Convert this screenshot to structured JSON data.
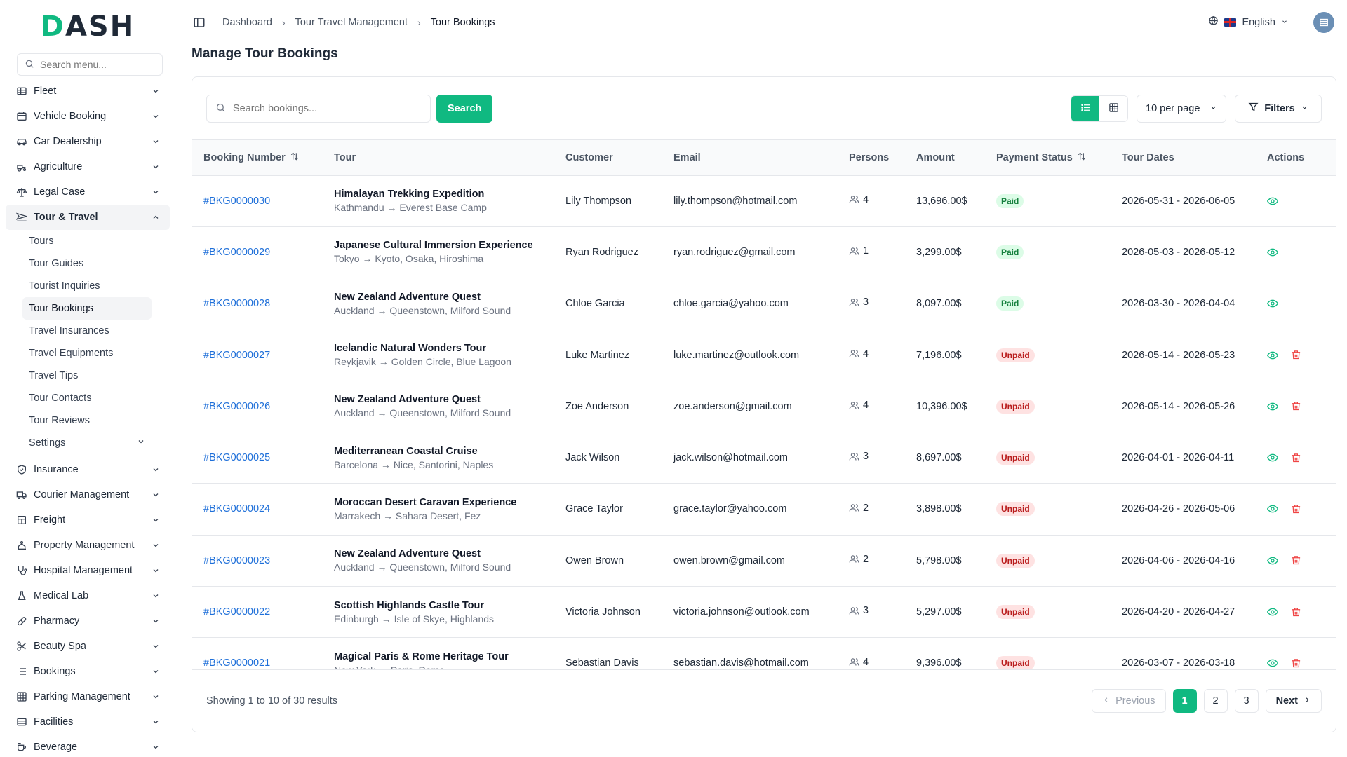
{
  "brand": {
    "logo_prefix": "D",
    "logo_rest": "ASH"
  },
  "sidebar": {
    "search_placeholder": "Search menu...",
    "items_top": [
      {
        "label": "Fleet",
        "icon": "fleet-icon"
      },
      {
        "label": "Vehicle Booking",
        "icon": "vehicle-booking-icon"
      },
      {
        "label": "Car Dealership",
        "icon": "car-icon"
      },
      {
        "label": "Agriculture",
        "icon": "agriculture-icon"
      },
      {
        "label": "Legal Case",
        "icon": "scale-icon"
      }
    ],
    "active_group": {
      "label": "Tour & Travel",
      "icon": "plane-icon"
    },
    "sub_items": [
      {
        "label": "Tours"
      },
      {
        "label": "Tour Guides"
      },
      {
        "label": "Tourist Inquiries"
      },
      {
        "label": "Tour Bookings"
      },
      {
        "label": "Travel Insurances"
      },
      {
        "label": "Travel Equipments"
      },
      {
        "label": "Travel Tips"
      },
      {
        "label": "Tour Contacts"
      },
      {
        "label": "Tour Reviews"
      },
      {
        "label": "Settings"
      }
    ],
    "items_bottom": [
      {
        "label": "Insurance",
        "icon": "shield-icon"
      },
      {
        "label": "Courier Management",
        "icon": "truck-icon"
      },
      {
        "label": "Freight",
        "icon": "freight-icon"
      },
      {
        "label": "Property Management",
        "icon": "property-icon"
      },
      {
        "label": "Hospital Management",
        "icon": "stethoscope-icon"
      },
      {
        "label": "Medical Lab",
        "icon": "flask-icon"
      },
      {
        "label": "Pharmacy",
        "icon": "pill-icon"
      },
      {
        "label": "Beauty Spa",
        "icon": "scissors-icon"
      },
      {
        "label": "Bookings",
        "icon": "list-icon"
      },
      {
        "label": "Parking Management",
        "icon": "parking-icon"
      },
      {
        "label": "Facilities",
        "icon": "facilities-icon"
      },
      {
        "label": "Beverage",
        "icon": "coffee-icon"
      }
    ]
  },
  "topbar": {
    "breadcrumbs": [
      "Dashboard",
      "Tour Travel Management",
      "Tour Bookings"
    ],
    "language": "English"
  },
  "page": {
    "title": "Manage Tour Bookings"
  },
  "toolbar": {
    "search_placeholder": "Search bookings...",
    "search_button": "Search",
    "per_page": "10 per page",
    "filters": "Filters"
  },
  "table": {
    "headers": {
      "booking_number": "Booking Number",
      "tour": "Tour",
      "customer": "Customer",
      "email": "Email",
      "persons": "Persons",
      "amount": "Amount",
      "payment_status": "Payment Status",
      "tour_dates": "Tour Dates",
      "actions": "Actions"
    },
    "rows": [
      {
        "booking": "#BKG0000030",
        "tour": "Himalayan Trekking Expedition",
        "route": "Kathmandu → Everest Base Camp",
        "customer": "Lily Thompson",
        "email": "lily.thompson@hotmail.com",
        "persons": "4",
        "amount": "13,696.00$",
        "status": "Paid",
        "dates": "2026-05-31 - 2026-06-05"
      },
      {
        "booking": "#BKG0000029",
        "tour": "Japanese Cultural Immersion Experience",
        "route": "Tokyo → Kyoto, Osaka, Hiroshima",
        "customer": "Ryan Rodriguez",
        "email": "ryan.rodriguez@gmail.com",
        "persons": "1",
        "amount": "3,299.00$",
        "status": "Paid",
        "dates": "2026-05-03 - 2026-05-12"
      },
      {
        "booking": "#BKG0000028",
        "tour": "New Zealand Adventure Quest",
        "route": "Auckland → Queenstown, Milford Sound",
        "customer": "Chloe Garcia",
        "email": "chloe.garcia@yahoo.com",
        "persons": "3",
        "amount": "8,097.00$",
        "status": "Paid",
        "dates": "2026-03-30 - 2026-04-04"
      },
      {
        "booking": "#BKG0000027",
        "tour": "Icelandic Natural Wonders Tour",
        "route": "Reykjavik → Golden Circle, Blue Lagoon",
        "customer": "Luke Martinez",
        "email": "luke.martinez@outlook.com",
        "persons": "4",
        "amount": "7,196.00$",
        "status": "Unpaid",
        "dates": "2026-05-14 - 2026-05-23"
      },
      {
        "booking": "#BKG0000026",
        "tour": "New Zealand Adventure Quest",
        "route": "Auckland → Queenstown, Milford Sound",
        "customer": "Zoe Anderson",
        "email": "zoe.anderson@gmail.com",
        "persons": "4",
        "amount": "10,396.00$",
        "status": "Unpaid",
        "dates": "2026-05-14 - 2026-05-26"
      },
      {
        "booking": "#BKG0000025",
        "tour": "Mediterranean Coastal Cruise",
        "route": "Barcelona → Nice, Santorini, Naples",
        "customer": "Jack Wilson",
        "email": "jack.wilson@hotmail.com",
        "persons": "3",
        "amount": "8,697.00$",
        "status": "Unpaid",
        "dates": "2026-04-01 - 2026-04-11"
      },
      {
        "booking": "#BKG0000024",
        "tour": "Moroccan Desert Caravan Experience",
        "route": "Marrakech → Sahara Desert, Fez",
        "customer": "Grace Taylor",
        "email": "grace.taylor@yahoo.com",
        "persons": "2",
        "amount": "3,898.00$",
        "status": "Unpaid",
        "dates": "2026-04-26 - 2026-05-06"
      },
      {
        "booking": "#BKG0000023",
        "tour": "New Zealand Adventure Quest",
        "route": "Auckland → Queenstown, Milford Sound",
        "customer": "Owen Brown",
        "email": "owen.brown@gmail.com",
        "persons": "2",
        "amount": "5,798.00$",
        "status": "Unpaid",
        "dates": "2026-04-06 - 2026-04-16"
      },
      {
        "booking": "#BKG0000022",
        "tour": "Scottish Highlands Castle Tour",
        "route": "Edinburgh → Isle of Skye, Highlands",
        "customer": "Victoria Johnson",
        "email": "victoria.johnson@outlook.com",
        "persons": "3",
        "amount": "5,297.00$",
        "status": "Unpaid",
        "dates": "2026-04-20 - 2026-04-27"
      },
      {
        "booking": "#BKG0000021",
        "tour": "Magical Paris & Rome Heritage Tour",
        "route": "New York → Paris, Rome",
        "customer": "Sebastian Davis",
        "email": "sebastian.davis@hotmail.com",
        "persons": "4",
        "amount": "9,396.00$",
        "status": "Unpaid",
        "dates": "2026-03-07 - 2026-03-18"
      }
    ]
  },
  "footer": {
    "showing": "Showing 1 to 10 of 30 results",
    "previous": "Previous",
    "pages": [
      "1",
      "2",
      "3"
    ],
    "next": "Next"
  },
  "colors": {
    "accent": "#10b981",
    "link": "#1e6fd9",
    "danger": "#ef4444"
  }
}
